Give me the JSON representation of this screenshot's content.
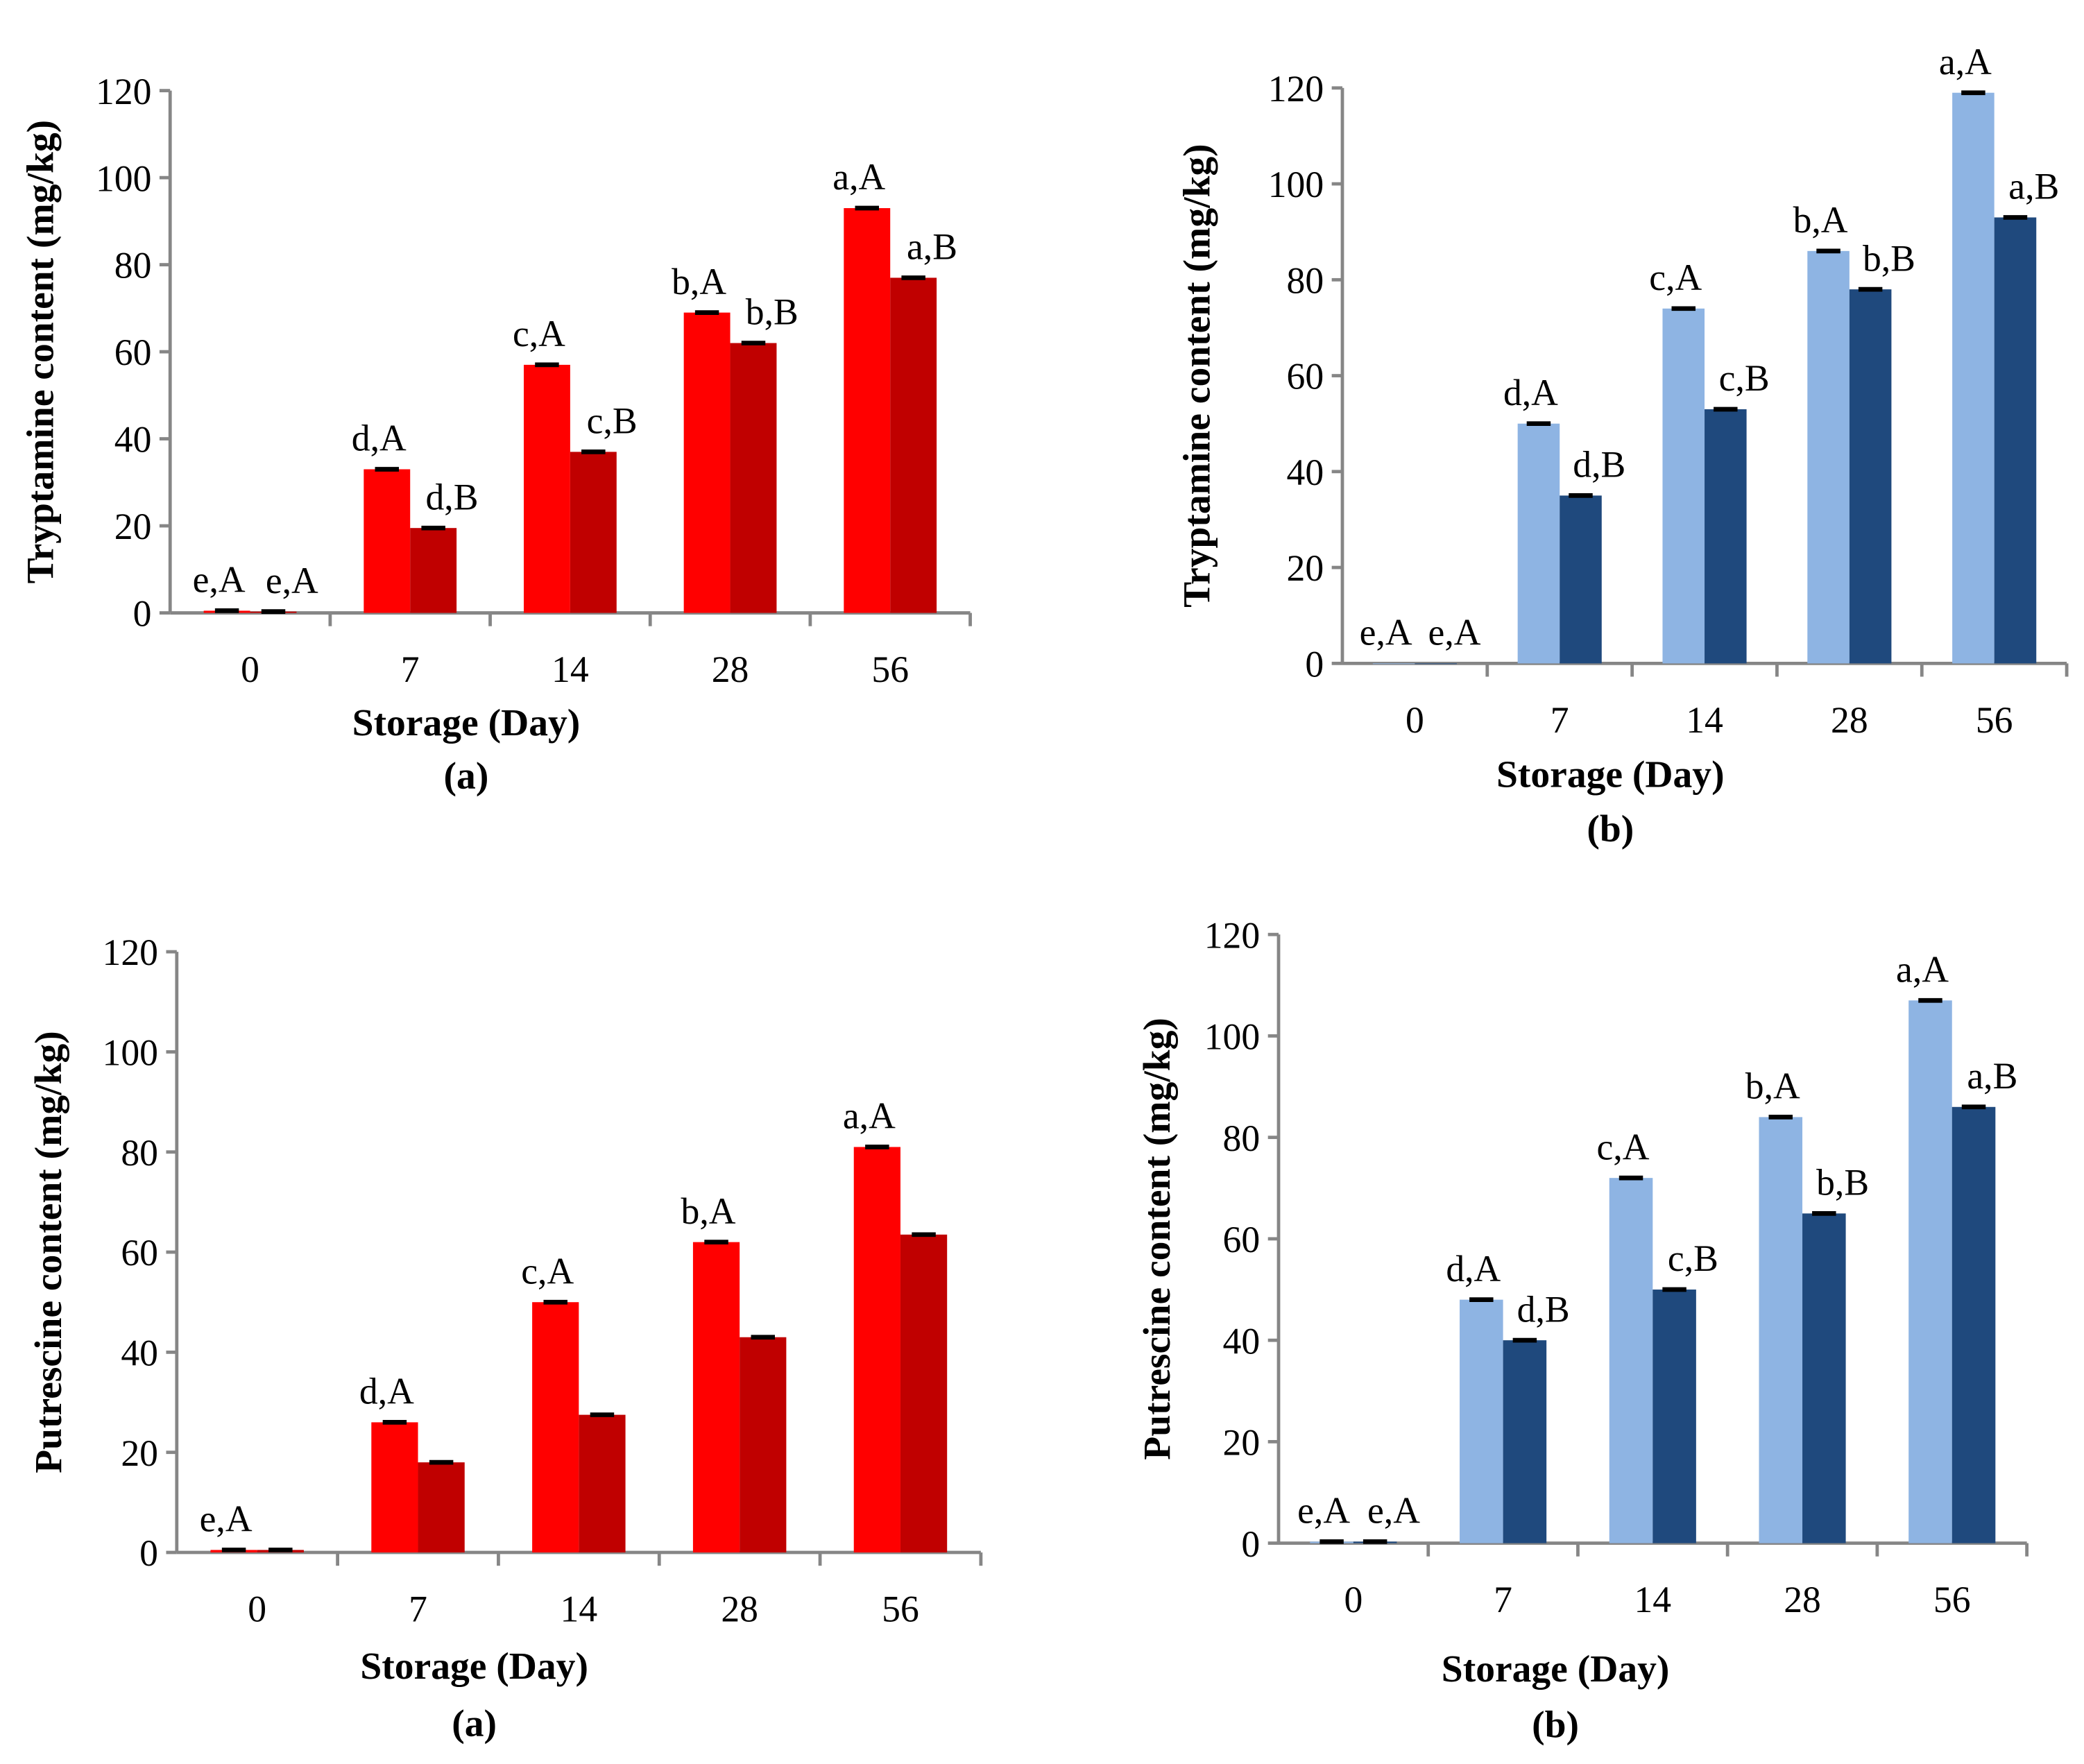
{
  "colors": {
    "red_light": "#ff0000",
    "red_dark": "#c00000",
    "blue_light": "#8eb4e3",
    "blue_dark": "#1f497d",
    "axis": "#868686",
    "error_bar": "#000000"
  },
  "chart_data": [
    {
      "type": "bar",
      "title": "",
      "caption": "(a)",
      "xlabel": "Storage (Day)",
      "ylabel": "Tryptamine content (mg/kg)",
      "ylim": [
        0,
        120
      ],
      "yticks": [
        "0",
        "20",
        "40",
        "60",
        "80",
        "100",
        "120"
      ],
      "grid": false,
      "legend": "none",
      "categories": [
        "0",
        "7",
        "14",
        "28",
        "56"
      ],
      "series": [
        {
          "name": "series-1",
          "color": "red_light",
          "values": [
            0.5,
            33,
            57,
            69,
            93
          ],
          "labels": [
            "e,A",
            "d,A",
            "c,A",
            "b,A",
            "a,A"
          ]
        },
        {
          "name": "series-2",
          "color": "red_dark",
          "values": [
            0.3,
            19.5,
            37,
            62,
            77
          ],
          "labels": [
            "e,A",
            "d,B",
            "c,B",
            "b,B",
            "a,B"
          ]
        }
      ]
    },
    {
      "type": "bar",
      "title": "",
      "caption": "(b)",
      "xlabel": "Storage (Day)",
      "ylabel": "Tryptamine content  (mg/kg)",
      "ylim": [
        0,
        120
      ],
      "yticks": [
        "0",
        "20",
        "40",
        "60",
        "80",
        "100",
        "120"
      ],
      "grid": false,
      "legend": "none",
      "categories": [
        "0",
        "7",
        "14",
        "28",
        "56"
      ],
      "series": [
        {
          "name": "series-1",
          "color": "blue_light",
          "values": [
            0,
            50,
            74,
            86,
            119
          ],
          "labels": [
            "e,A",
            "d,A",
            "c,A",
            "b,A",
            "a,A"
          ]
        },
        {
          "name": "series-2",
          "color": "blue_dark",
          "values": [
            0,
            35,
            53,
            78,
            93
          ],
          "labels": [
            "e,A",
            "d,B",
            "c,B",
            "b,B",
            "a,B"
          ]
        }
      ]
    },
    {
      "type": "bar",
      "title": "",
      "caption": "(a)",
      "xlabel": "Storage (Day)",
      "ylabel": "Putrescine  content (mg/kg)",
      "ylim": [
        0,
        120
      ],
      "yticks": [
        "0",
        "20",
        "40",
        "60",
        "80",
        "100",
        "120"
      ],
      "grid": false,
      "legend": "none",
      "categories": [
        "0",
        "7",
        "14",
        "28",
        "56"
      ],
      "series": [
        {
          "name": "series-1",
          "color": "red_light",
          "values": [
            0.5,
            26,
            50,
            62,
            81
          ],
          "labels": [
            "e,A",
            "d,A",
            "c,A",
            "b,A",
            "a,A"
          ]
        },
        {
          "name": "series-2",
          "color": "red_dark",
          "values": [
            0.5,
            18,
            27.5,
            43,
            63.5
          ],
          "labels": []
        }
      ]
    },
    {
      "type": "bar",
      "title": "",
      "caption": "(b)",
      "xlabel": "Storage (Day)",
      "ylabel": "Putrescine  content (mg/kg)",
      "ylim": [
        0,
        120
      ],
      "yticks": [
        "0",
        "20",
        "40",
        "60",
        "80",
        "100",
        "120"
      ],
      "grid": false,
      "legend": "none",
      "categories": [
        "0",
        "7",
        "14",
        "28",
        "56"
      ],
      "series": [
        {
          "name": "series-1",
          "color": "blue_light",
          "values": [
            0.3,
            48,
            72,
            84,
            107
          ],
          "labels": [
            "e,A",
            "d,A",
            "c,A",
            "b,A",
            "a,A"
          ]
        },
        {
          "name": "series-2",
          "color": "blue_dark",
          "values": [
            0.3,
            40,
            50,
            65,
            86
          ],
          "labels": [
            "e,A",
            "d,B",
            "c,B",
            "b,B",
            "a,B"
          ]
        }
      ]
    }
  ]
}
